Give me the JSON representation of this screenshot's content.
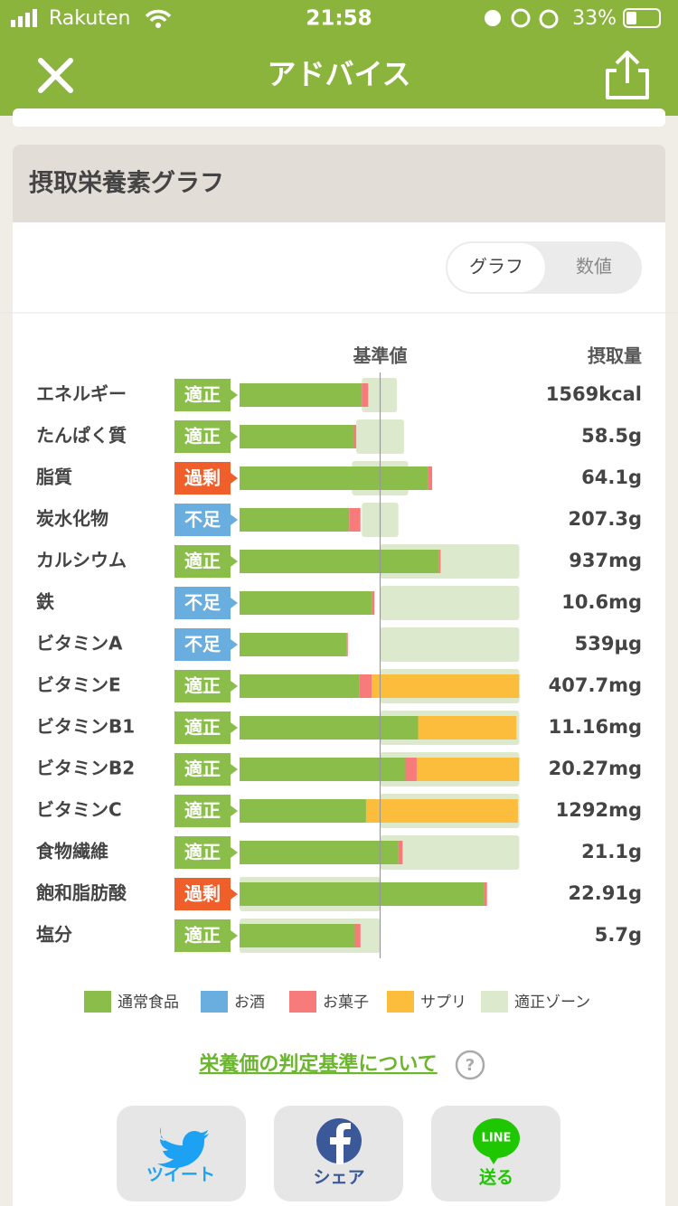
{
  "status_bar": {
    "carrier": "Rakuten",
    "time": "21:58",
    "battery": "33%"
  },
  "nav": {
    "title": "アドバイス"
  },
  "section": {
    "title": "摂取栄養素グラフ",
    "tabs": [
      "グラフ",
      "数値"
    ]
  },
  "chart_data": {
    "type": "bar",
    "orientation": "horizontal",
    "stacked": true,
    "reference_label": "基準値",
    "value_header": "摂取量",
    "categories": [
      "エネルギー",
      "たんぱく質",
      "脂質",
      "炭水化物",
      "カルシウム",
      "鉄",
      "ビタミンA",
      "ビタミンE",
      "ビタミンB1",
      "ビタミンB2",
      "ビタミンC",
      "食物繊維",
      "飽和脂肪酸",
      "塩分"
    ],
    "status": [
      "適正",
      "適正",
      "過剰",
      "不足",
      "適正",
      "不足",
      "不足",
      "適正",
      "適正",
      "適正",
      "適正",
      "適正",
      "過剰",
      "適正"
    ],
    "status_colors": [
      "#8bbd4a",
      "#8bbd4a",
      "#f05f2a",
      "#6aaee0",
      "#8bbd4a",
      "#6aaee0",
      "#6aaee0",
      "#8bbd4a",
      "#8bbd4a",
      "#8bbd4a",
      "#8bbd4a",
      "#8bbd4a",
      "#f05f2a",
      "#8bbd4a"
    ],
    "intake": [
      "1569kcal",
      "58.5g",
      "64.1g",
      "207.3g",
      "937mg",
      "10.6mg",
      "539µg",
      "407.7mg",
      "11.16mg",
      "20.27mg",
      "1292mg",
      "21.1g",
      "22.91g",
      "5.7g"
    ],
    "series": [
      {
        "name": "通常食品",
        "color": "#8bbd4a",
        "values": [
          87,
          81,
          134,
          78,
          142,
          94,
          76,
          85,
          127,
          118,
          90,
          113,
          174,
          82
        ]
      },
      {
        "name": "お酒",
        "color": "#6aaee0",
        "values": [
          0,
          0,
          0,
          0,
          0,
          0,
          0,
          0,
          0,
          0,
          0,
          0,
          0,
          0
        ]
      },
      {
        "name": "お菓子",
        "color": "#f77b7b",
        "values": [
          4.5,
          2,
          3,
          8,
          1,
          2,
          1,
          9,
          0,
          8,
          0,
          3,
          2,
          4
        ]
      },
      {
        "name": "サプリ",
        "color": "#fdbd3c",
        "values": [
          0,
          0,
          0,
          0,
          0,
          0,
          0,
          105,
          70,
          73,
          108,
          0,
          0,
          0
        ]
      }
    ],
    "zone": {
      "name": "適正ゾーン",
      "color": "#dde9cc",
      "ranges": [
        [
          87,
          112
        ],
        [
          83,
          117
        ],
        [
          80,
          120
        ],
        [
          87,
          113
        ],
        [
          100,
          199
        ],
        [
          100,
          199
        ],
        [
          100,
          199
        ],
        [
          100,
          199
        ],
        [
          100,
          199
        ],
        [
          100,
          199
        ],
        [
          100,
          199
        ],
        [
          100,
          199
        ],
        [
          0,
          100
        ],
        [
          0,
          100
        ]
      ]
    },
    "reference": 100,
    "xlim": [
      0,
      200
    ]
  },
  "link": "栄養価の判定基準について",
  "share": [
    {
      "label": "ツイート"
    },
    {
      "label": "シェア"
    },
    {
      "label": "送る",
      "icon_text": "LINE"
    }
  ]
}
